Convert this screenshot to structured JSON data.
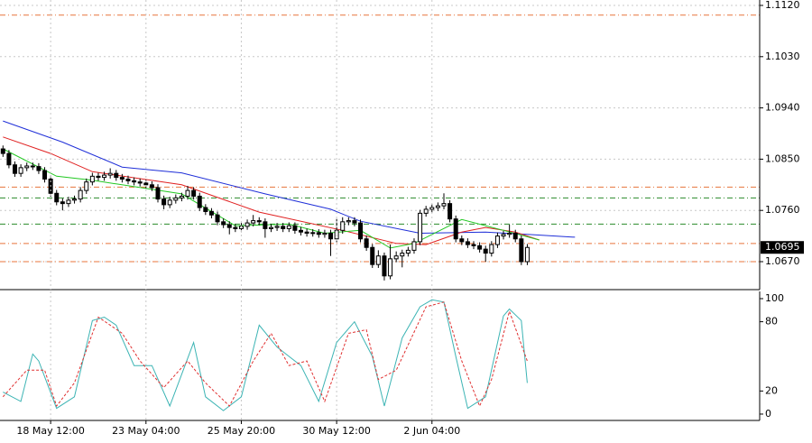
{
  "chart_data": [
    {
      "type": "candlestick",
      "open": [
        1.0868,
        1.086,
        1.084,
        1.0825,
        1.0835,
        1.0838,
        1.0837,
        1.083,
        1.0815,
        1.079,
        1.0775,
        1.0772,
        1.0778,
        1.078,
        1.0795,
        1.081,
        1.082,
        1.0818,
        1.0822,
        1.0825,
        1.0818,
        1.0815,
        1.0812,
        1.081,
        1.0808,
        1.0805,
        1.08,
        1.078,
        1.077,
        1.0778,
        1.0782,
        1.0785,
        1.0795,
        1.0785,
        1.0765,
        1.0758,
        1.0752,
        1.074,
        1.0735,
        1.073,
        1.0728,
        1.0732,
        1.0738,
        1.0742,
        1.074,
        1.0728,
        1.073,
        1.0732,
        1.0728,
        1.0733,
        1.0725,
        1.0722,
        1.072,
        1.0721,
        1.0718,
        1.072,
        1.071,
        1.0725,
        1.074,
        1.0742,
        1.0738,
        1.071,
        1.0695,
        1.0665,
        1.068,
        1.0645,
        1.0675,
        1.068,
        1.0685,
        1.069,
        1.0705,
        1.0755,
        1.0762,
        1.0765,
        1.0768,
        1.0772,
        1.0745,
        1.071,
        1.0705,
        1.07,
        1.0698,
        1.0692,
        1.0685,
        1.07,
        1.0715,
        1.0718,
        1.072,
        1.071,
        1.067
      ],
      "high": [
        1.0874,
        1.0866,
        1.0846,
        1.0841,
        1.0844,
        1.0844,
        1.0843,
        1.0836,
        1.0821,
        1.0796,
        1.0781,
        1.0784,
        1.0786,
        1.0801,
        1.0816,
        1.0826,
        1.0826,
        1.0828,
        1.0834,
        1.0831,
        1.0824,
        1.0821,
        1.0818,
        1.0816,
        1.0814,
        1.0811,
        1.0806,
        1.0786,
        1.0784,
        1.0788,
        1.0791,
        1.0803,
        1.0801,
        1.0791,
        1.0771,
        1.0764,
        1.0758,
        1.0746,
        1.0741,
        1.0736,
        1.0738,
        1.0744,
        1.0752,
        1.0748,
        1.0746,
        1.0736,
        1.0738,
        1.0738,
        1.0739,
        1.0739,
        1.0731,
        1.0728,
        1.0727,
        1.0727,
        1.0726,
        1.0726,
        1.0745,
        1.0748,
        1.0748,
        1.0748,
        1.0744,
        1.0716,
        1.0701,
        1.069,
        1.0686,
        1.07,
        1.0688,
        1.0691,
        1.0696,
        1.0711,
        1.0761,
        1.0768,
        1.0771,
        1.0774,
        1.079,
        1.0778,
        1.0751,
        1.0716,
        1.0711,
        1.0706,
        1.0704,
        1.0698,
        1.0706,
        1.0721,
        1.0724,
        1.0735,
        1.0726,
        1.0716,
        1.0701
      ],
      "low": [
        1.0854,
        1.0834,
        1.0819,
        1.0819,
        1.0829,
        1.0831,
        1.0824,
        1.0809,
        1.0784,
        1.0769,
        1.076,
        1.0766,
        1.0772,
        1.0774,
        1.0789,
        1.0804,
        1.0812,
        1.0812,
        1.0816,
        1.0812,
        1.0809,
        1.0806,
        1.0804,
        1.0802,
        1.0799,
        1.0794,
        1.0774,
        1.0762,
        1.0764,
        1.0772,
        1.0776,
        1.0779,
        1.0779,
        1.0759,
        1.0752,
        1.0746,
        1.0734,
        1.0729,
        1.0718,
        1.0722,
        1.0722,
        1.0726,
        1.0732,
        1.0734,
        1.0712,
        1.0722,
        1.0724,
        1.0722,
        1.0722,
        1.0719,
        1.0716,
        1.0714,
        1.0714,
        1.0712,
        1.0712,
        1.068,
        1.0704,
        1.0719,
        1.0734,
        1.0732,
        1.0704,
        1.0689,
        1.0659,
        1.0659,
        1.0637,
        1.0639,
        1.0669,
        1.066,
        1.0679,
        1.0684,
        1.0699,
        1.0749,
        1.0756,
        1.0759,
        1.0762,
        1.0739,
        1.0704,
        1.0699,
        1.0694,
        1.0692,
        1.0686,
        1.067,
        1.0679,
        1.0694,
        1.0709,
        1.0712,
        1.0704,
        1.0664,
        1.0664
      ],
      "close": [
        1.086,
        1.084,
        1.0825,
        1.0835,
        1.0838,
        1.0837,
        1.083,
        1.0815,
        1.079,
        1.0775,
        1.0772,
        1.0778,
        1.078,
        1.0795,
        1.081,
        1.082,
        1.0818,
        1.0822,
        1.0825,
        1.0818,
        1.0815,
        1.0812,
        1.081,
        1.0808,
        1.0805,
        1.08,
        1.078,
        1.077,
        1.0778,
        1.0782,
        1.0785,
        1.0795,
        1.0785,
        1.0765,
        1.0758,
        1.0752,
        1.074,
        1.0735,
        1.073,
        1.0728,
        1.0732,
        1.0738,
        1.0742,
        1.074,
        1.0728,
        1.073,
        1.0732,
        1.0728,
        1.0733,
        1.0725,
        1.0722,
        1.072,
        1.0721,
        1.0718,
        1.072,
        1.071,
        1.0725,
        1.074,
        1.0742,
        1.0738,
        1.071,
        1.0695,
        1.0665,
        1.068,
        1.0645,
        1.0675,
        1.068,
        1.0685,
        1.069,
        1.0705,
        1.0755,
        1.0762,
        1.0765,
        1.0768,
        1.0772,
        1.0745,
        1.071,
        1.0705,
        1.07,
        1.0698,
        1.0692,
        1.0685,
        1.07,
        1.0715,
        1.0718,
        1.072,
        1.071,
        1.067,
        1.0695
      ],
      "up_color": "#ffffff",
      "down_color": "#000000",
      "xlim": [
        -0.5,
        127
      ],
      "ylim": [
        1.06209,
        1.11295
      ],
      "yticks": [
        {
          "value": 1.067,
          "label": "1.0670"
        },
        {
          "value": 1.076,
          "label": "1.0760"
        },
        {
          "value": 1.085,
          "label": "1.0850"
        },
        {
          "value": 1.094,
          "label": "1.0940"
        },
        {
          "value": 1.103,
          "label": "1.1030"
        },
        {
          "value": 1.112,
          "label": "1.1120"
        }
      ],
      "grid": true,
      "series": [
        {
          "color": "#1f2fd8",
          "x": [
            0,
            10,
            20,
            30,
            44,
            55,
            60,
            70,
            81,
            88,
            96
          ],
          "values": [
            1.0917,
            1.088,
            1.0836,
            1.0826,
            1.0789,
            1.0762,
            1.0741,
            1.072,
            1.0722,
            1.0718,
            1.0713
          ]
        },
        {
          "color": "#e02020",
          "x": [
            0,
            8,
            15,
            30,
            43,
            57,
            66,
            71,
            77,
            81,
            86,
            90
          ],
          "values": [
            1.0889,
            1.086,
            1.0828,
            1.0805,
            1.0757,
            1.0725,
            1.0702,
            1.07,
            1.0722,
            1.073,
            1.0722,
            1.0708
          ]
        },
        {
          "color": "#22c822",
          "x": [
            0,
            9,
            15,
            30,
            39,
            48,
            54,
            60,
            65,
            69,
            77,
            84,
            90
          ],
          "values": [
            1.0868,
            1.082,
            1.0813,
            1.0789,
            1.0733,
            1.0736,
            1.072,
            1.0725,
            1.0694,
            1.0702,
            1.0744,
            1.0725,
            1.0708
          ]
        }
      ],
      "levels": [
        {
          "value": 1.1103,
          "color": "#e8743b"
        },
        {
          "value": 1.0801,
          "color": "#e8743b"
        },
        {
          "value": 1.0782,
          "color": "#2a8a2a"
        },
        {
          "value": 1.0736,
          "color": "#2a8a2a"
        },
        {
          "value": 1.0702,
          "color": "#e8743b"
        },
        {
          "value": 1.067,
          "color": "#e8743b"
        }
      ],
      "last_price": {
        "value": 1.0695,
        "label": "1.0695"
      }
    },
    {
      "type": "line",
      "xlim": [
        -0.5,
        127
      ],
      "ylim": [
        -5.5,
        106.25
      ],
      "yticks": [
        0,
        20,
        80,
        100
      ],
      "xticks": [
        {
          "value": 8,
          "label": "18 May 12:00"
        },
        {
          "value": 24,
          "label": "23 May 04:00"
        },
        {
          "value": 40,
          "label": "25 May 20:00"
        },
        {
          "value": 56,
          "label": "30 May 12:00"
        },
        {
          "value": 72,
          "label": "2 Jun 04:00"
        }
      ],
      "series": [
        {
          "color": "#3cb4b4",
          "x": [
            0,
            3,
            5,
            6,
            9,
            12,
            15,
            17,
            19,
            22,
            25,
            28,
            32,
            34,
            37,
            40,
            43,
            46,
            48,
            50,
            53,
            56,
            59,
            62,
            64,
            67,
            70,
            72,
            74,
            76,
            78,
            81,
            84,
            85,
            87,
            88
          ],
          "values": [
            19,
            11,
            52,
            46,
            5,
            15,
            81,
            84,
            77,
            42,
            42,
            7,
            62,
            15,
            3,
            15,
            77,
            58,
            50,
            42,
            11,
            62,
            80,
            50,
            7,
            66,
            93,
            99,
            97,
            50,
            5,
            15,
            85,
            91,
            81,
            27
          ]
        },
        {
          "color": "#e03030",
          "dashed": true,
          "x": [
            0,
            4,
            7,
            9,
            12,
            16,
            20,
            23,
            27,
            31,
            34,
            38,
            42,
            45,
            48,
            51,
            54,
            58,
            61,
            63,
            66,
            71,
            74,
            77,
            80,
            82,
            85,
            88
          ],
          "values": [
            15,
            38,
            38,
            7,
            27,
            84,
            70,
            46,
            23,
            46,
            27,
            7,
            46,
            70,
            42,
            46,
            11,
            70,
            73,
            30,
            38,
            93,
            97,
            46,
            7,
            30,
            89,
            46
          ]
        }
      ]
    }
  ]
}
